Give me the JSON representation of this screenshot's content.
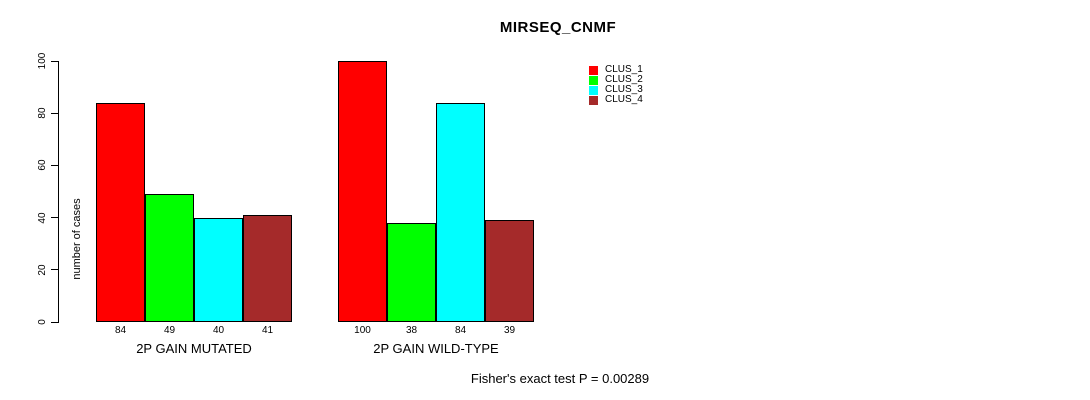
{
  "chart_data": {
    "type": "bar",
    "title": "MIRSEQ_CNMF",
    "xlabel": "",
    "ylabel": "number of cases",
    "ylim": [
      0,
      100
    ],
    "yticks": [
      0,
      20,
      40,
      60,
      80,
      100
    ],
    "grid": false,
    "legend_position": "top-right",
    "bar_value_labels": true,
    "categories": [
      "2P GAIN MUTATED",
      "2P GAIN WILD-TYPE"
    ],
    "series": [
      {
        "name": "CLUS_1",
        "color": "#ff0000",
        "values": [
          84,
          100
        ]
      },
      {
        "name": "CLUS_2",
        "color": "#00ff00",
        "values": [
          49,
          38
        ]
      },
      {
        "name": "CLUS_3",
        "color": "#00ffff",
        "values": [
          40,
          84
        ]
      },
      {
        "name": "CLUS_4",
        "color": "#a52a2a",
        "values": [
          41,
          39
        ]
      }
    ],
    "annotation": "Fisher's exact test P = 0.00289"
  }
}
